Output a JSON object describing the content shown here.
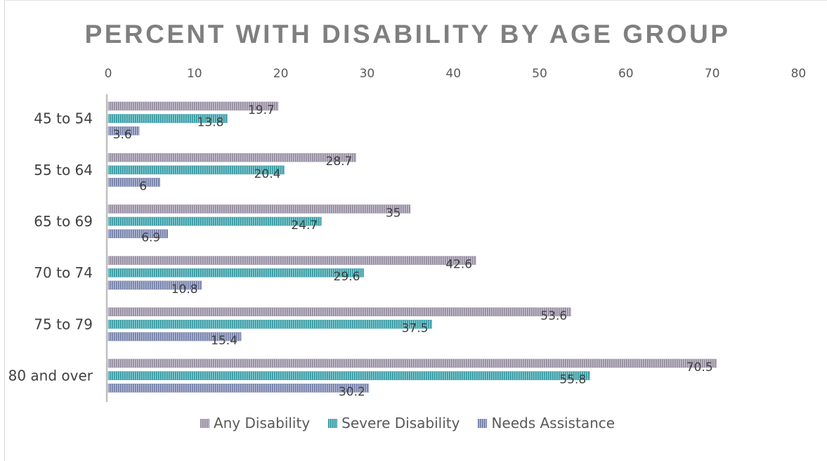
{
  "chart_data": {
    "type": "bar",
    "orientation": "horizontal",
    "title": "PERCENT WITH DISABILITY BY AGE GROUP",
    "categories": [
      "45 to 54",
      "55 to 64",
      "65 to 69",
      "70 to 74",
      "75 to 79",
      "80 and over"
    ],
    "series": [
      {
        "name": "Any Disability",
        "color": "#a8a0b4",
        "values": [
          19.7,
          28.7,
          35,
          42.6,
          53.6,
          70.5
        ]
      },
      {
        "name": "Severe Disability",
        "color": "#4bacb4",
        "values": [
          13.8,
          20.4,
          24.7,
          29.6,
          37.5,
          55.8
        ]
      },
      {
        "name": "Needs Assistance",
        "color": "#8c96b9",
        "values": [
          3.6,
          6,
          6.9,
          10.8,
          15.4,
          30.2
        ]
      }
    ],
    "xlim": [
      0,
      80
    ],
    "xticks": [
      "0",
      "10",
      "20",
      "30",
      "40",
      "50",
      "60",
      "70",
      "80"
    ],
    "xaxis_position": "top",
    "grid": false,
    "legend_position": "bottom"
  }
}
